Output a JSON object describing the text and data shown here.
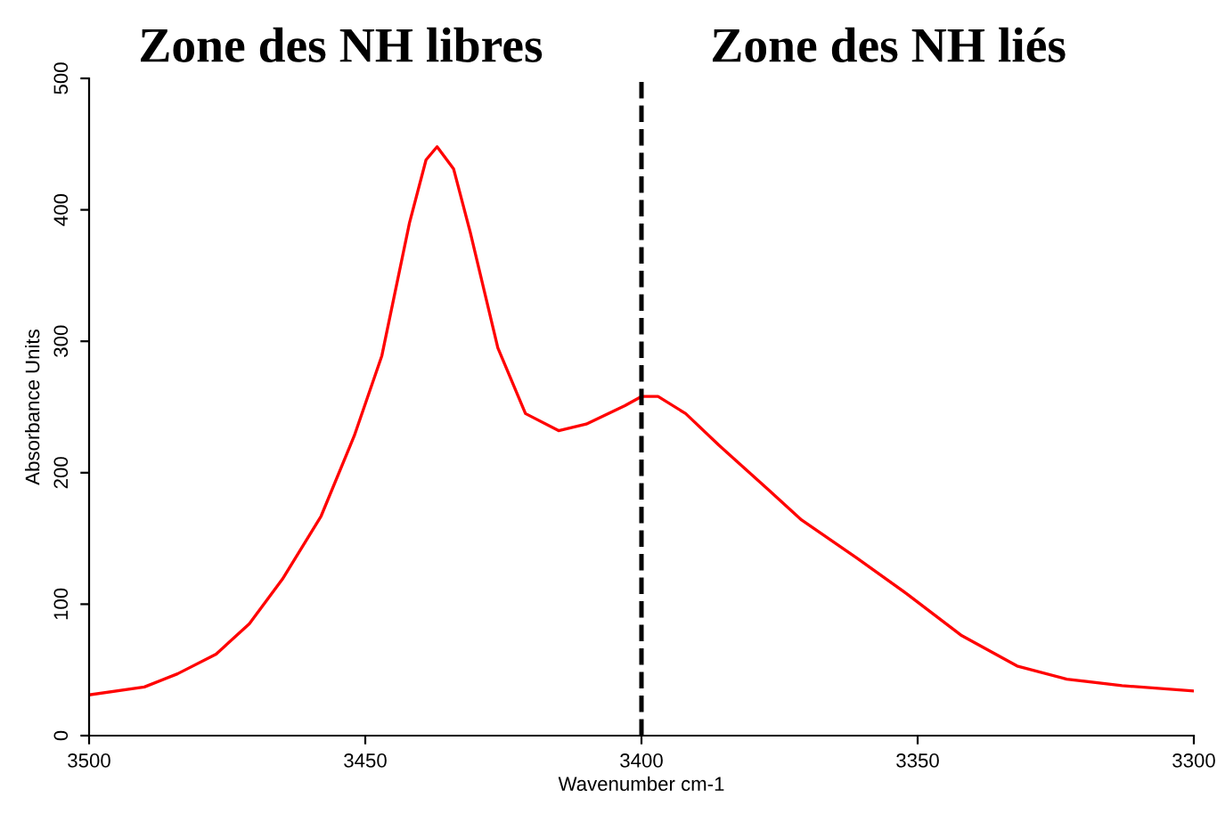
{
  "chart_data": {
    "type": "line",
    "xlabel": "Wavenumber cm-1",
    "ylabel": "Absorbance Units",
    "annotations": [
      "Zone des NH libres",
      "Zone des NH liés"
    ],
    "x": [
      3500,
      3490,
      3484,
      3477,
      3471,
      3465,
      3458,
      3452,
      3447,
      3442,
      3439,
      3437,
      3434,
      3431,
      3426,
      3421,
      3415,
      3410,
      3403,
      3400,
      3397,
      3392,
      3386,
      3377,
      3371,
      3361,
      3352,
      3342,
      3332,
      3323,
      3313,
      3300
    ],
    "series": [
      {
        "color": "#ff0000",
        "values": [
          31,
          37,
          47,
          62,
          85,
          119,
          167,
          228,
          289,
          390,
          438,
          448,
          431,
          383,
          295,
          245,
          232,
          237,
          251,
          258,
          258,
          245,
          221,
          187,
          164,
          135,
          108,
          76,
          53,
          43,
          38,
          34
        ]
      }
    ],
    "xlim": [
      3500,
      3300
    ],
    "xticks": [
      3500,
      3450,
      3400,
      3350,
      3300
    ],
    "ylim": [
      0,
      500
    ],
    "yticks": [
      0,
      100,
      200,
      300,
      400,
      500
    ],
    "ref_lines": [
      {
        "axis": "x",
        "value": 3400,
        "color": "#000000",
        "line_style": "dashed"
      }
    ],
    "grid": false,
    "legend": false
  }
}
